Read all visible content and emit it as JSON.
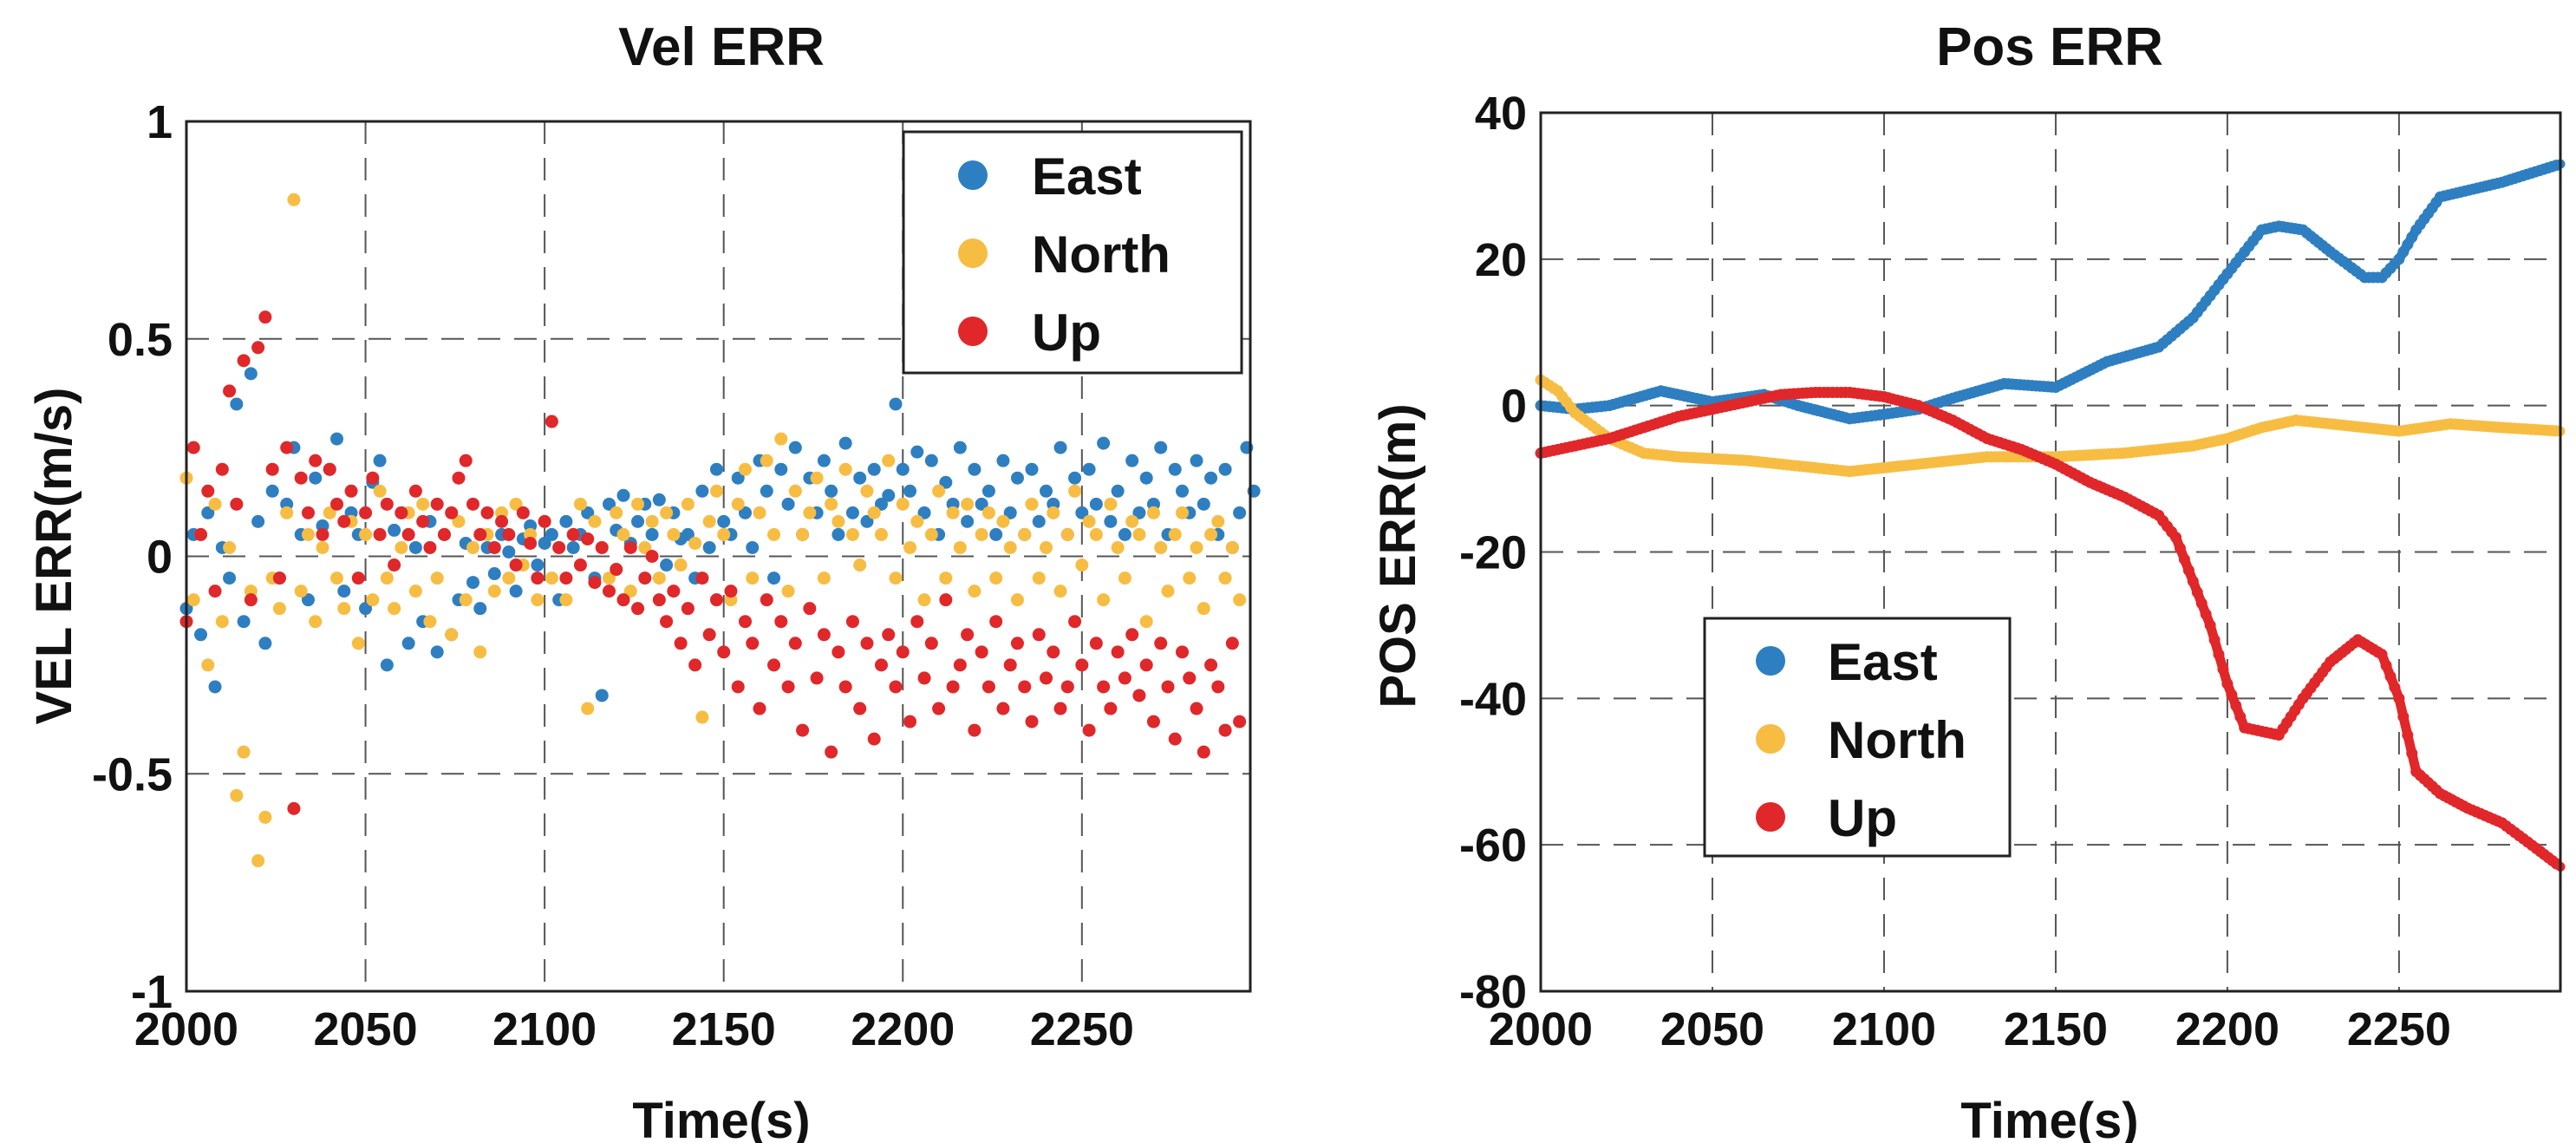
{
  "chart_data": [
    {
      "id": "vel",
      "type": "scatter",
      "title": "Vel ERR",
      "xlabel": "Time(s)",
      "ylabel": "VEL ERR(m/s)",
      "xlim": [
        2000,
        2297
      ],
      "ylim": [
        -1,
        1
      ],
      "xticks": [
        2000,
        2050,
        2100,
        2150,
        2200,
        2250
      ],
      "yticks": [
        -1,
        -0.5,
        0,
        0.5,
        1
      ],
      "xtick_labels": [
        "2000",
        "2050",
        "2100",
        "2150",
        "2200",
        "2250"
      ],
      "ytick_labels": [
        "-1",
        "-0.5",
        "0",
        "0.5",
        "1"
      ],
      "grid": true,
      "legend_position": "top-right",
      "x_start": 2000,
      "x_step": 2,
      "series": [
        {
          "name": "East",
          "color": "#2e7fc1",
          "values": [
            -0.12,
            0.05,
            -0.18,
            0.1,
            -0.3,
            0.02,
            -0.05,
            0.35,
            -0.15,
            0.42,
            0.08,
            -0.2,
            0.15,
            -0.05,
            0.12,
            0.25,
            0.05,
            -0.1,
            0.18,
            0.07,
            0.2,
            0.27,
            -0.08,
            0.1,
            0.05,
            -0.12,
            0.17,
            0.22,
            -0.25,
            0.06,
            0.1,
            -0.2,
            0.02,
            -0.15,
            0.08,
            -0.22,
            0.05,
            -0.18,
            -0.1,
            0.03,
            -0.06,
            -0.12,
            0.02,
            -0.04,
            0.05,
            0.01,
            -0.08,
            0.04,
            0.07,
            -0.02,
            0.03,
            0.05,
            -0.1,
            0.08,
            0.02,
            0.05,
            0.1,
            -0.05,
            -0.32,
            0.12,
            0.06,
            0.14,
            0.03,
            0.08,
            0.12,
            0.05,
            0.13,
            -0.02,
            0.1,
            0.04,
            0.05,
            -0.05,
            0.15,
            0.02,
            0.2,
            0.08,
            0.05,
            0.18,
            0.1,
            0.02,
            0.22,
            0.15,
            -0.05,
            0.2,
            0.12,
            0.25,
            0.05,
            0.18,
            0.1,
            0.22,
            0.15,
            0.05,
            0.26,
            0.1,
            0.18,
            0.08,
            0.2,
            0.12,
            0.14,
            0.35,
            0.2,
            0.15,
            0.24,
            0.1,
            0.22,
            0.05,
            0.17,
            0.12,
            0.25,
            0.08,
            0.2,
            0.12,
            0.15,
            0.05,
            0.22,
            0.1,
            0.18,
            0.05,
            0.2,
            0.08,
            0.15,
            0.12,
            0.25,
            0.05,
            0.18,
            0.1,
            0.2,
            0.12,
            0.26,
            0.08,
            0.15,
            0.05,
            0.22,
            0.1,
            0.18,
            0.12,
            0.25,
            0.05,
            0.2,
            0.15,
            0.1,
            0.22,
            0.12,
            0.18,
            0.05,
            0.2,
            0.02,
            0.1,
            0.25,
            0.15
          ]
        },
        {
          "name": "North",
          "color": "#f7bd42",
          "values": [
            0.18,
            -0.1,
            0.05,
            -0.25,
            0.12,
            -0.15,
            0.02,
            -0.55,
            -0.45,
            -0.08,
            -0.7,
            -0.6,
            -0.05,
            -0.12,
            0.1,
            0.82,
            -0.08,
            0.05,
            -0.15,
            0.02,
            0.1,
            -0.05,
            -0.12,
            0.08,
            -0.2,
            0.05,
            -0.1,
            0.15,
            -0.05,
            -0.12,
            0.02,
            0.1,
            -0.08,
            0.12,
            -0.15,
            -0.05,
            0.05,
            -0.18,
            0.08,
            -0.1,
            0.02,
            -0.22,
            0.05,
            -0.08,
            0.1,
            -0.05,
            0.12,
            -0.02,
            0.05,
            -0.1,
            0.08,
            -0.05,
            0.02,
            -0.1,
            0.05,
            0.12,
            -0.35,
            0.08,
            0.02,
            -0.05,
            0.1,
            0.05,
            -0.08,
            0.12,
            0.02,
            0.08,
            -0.05,
            0.1,
            0.05,
            -0.02,
            0.12,
            0.03,
            -0.37,
            0.08,
            0.15,
            0.05,
            -0.1,
            0.12,
            0.2,
            -0.05,
            0.1,
            0.22,
            0.05,
            0.27,
            -0.08,
            0.15,
            0.05,
            0.1,
            0.18,
            -0.05,
            0.12,
            0.08,
            0.2,
            0.05,
            -0.02,
            0.15,
            0.1,
            0.05,
            0.22,
            -0.05,
            0.12,
            0.02,
            0.08,
            -0.1,
            0.05,
            0.15,
            -0.05,
            0.1,
            0.02,
            0.12,
            -0.08,
            0.05,
            0.1,
            -0.05,
            0.08,
            0.02,
            -0.1,
            0.05,
            0.12,
            -0.05,
            0.02,
            0.1,
            -0.08,
            0.05,
            0.15,
            -0.02,
            0.08,
            0.05,
            -0.1,
            0.12,
            0.02,
            -0.05,
            0.08,
            0.05,
            -0.15,
            0.1,
            0.02,
            -0.08,
            0.05,
            0.1,
            -0.05,
            0.02,
            -0.12,
            0.05,
            0.08,
            -0.05,
            0.02,
            -0.1
          ]
        },
        {
          "name": "Up",
          "color": "#e0272a",
          "values": [
            -0.15,
            0.25,
            0.05,
            0.15,
            -0.08,
            0.2,
            0.38,
            0.12,
            0.45,
            -0.1,
            0.48,
            0.55,
            0.2,
            -0.05,
            0.25,
            -0.58,
            0.18,
            0.1,
            0.22,
            0.05,
            0.2,
            0.12,
            0.08,
            0.15,
            -0.05,
            0.1,
            0.18,
            0.05,
            0.12,
            -0.02,
            0.1,
            0.05,
            0.15,
            0.08,
            0.02,
            0.12,
            0.05,
            0.1,
            0.18,
            0.22,
            0.12,
            0.05,
            0.1,
            0.02,
            0.08,
            0.05,
            -0.02,
            0.1,
            0.03,
            -0.05,
            0.08,
            0.31,
            0.02,
            -0.05,
            0.05,
            -0.02,
            0.04,
            -0.06,
            0.02,
            -0.08,
            -0.03,
            -0.1,
            0.02,
            -0.12,
            -0.05,
            0,
            -0.1,
            -0.15,
            -0.08,
            -0.2,
            -0.12,
            -0.25,
            -0.05,
            -0.18,
            -0.1,
            -0.22,
            -0.08,
            -0.3,
            -0.15,
            -0.2,
            -0.35,
            -0.1,
            -0.25,
            -0.15,
            -0.3,
            -0.2,
            -0.4,
            -0.12,
            -0.28,
            -0.18,
            -0.45,
            -0.22,
            -0.3,
            -0.15,
            -0.35,
            -0.2,
            -0.42,
            -0.25,
            -0.18,
            -0.3,
            -0.22,
            -0.38,
            -0.15,
            -0.28,
            -0.2,
            -0.35,
            -0.1,
            -0.3,
            -0.25,
            -0.18,
            -0.4,
            -0.22,
            -0.3,
            -0.15,
            -0.35,
            -0.25,
            -0.2,
            -0.3,
            -0.38,
            -0.18,
            -0.28,
            -0.22,
            -0.35,
            -0.3,
            -0.15,
            -0.25,
            -0.4,
            -0.2,
            -0.3,
            -0.35,
            -0.22,
            -0.28,
            -0.18,
            -0.32,
            -0.25,
            -0.38,
            -0.2,
            -0.3,
            -0.42,
            -0.22,
            -0.28,
            -0.35,
            -0.45,
            -0.25,
            -0.3,
            -0.4,
            -0.2,
            -0.38
          ]
        }
      ]
    },
    {
      "id": "pos",
      "type": "line",
      "title": "Pos ERR",
      "xlabel": "Time(s)",
      "ylabel": "POS ERR(m)",
      "xlim": [
        2000,
        2297
      ],
      "ylim": [
        -80,
        40
      ],
      "xticks": [
        2000,
        2050,
        2100,
        2150,
        2200,
        2250
      ],
      "yticks": [
        -80,
        -60,
        -40,
        -20,
        0,
        20,
        40
      ],
      "xtick_labels": [
        "2000",
        "2050",
        "2100",
        "2150",
        "2200",
        "2250"
      ],
      "ytick_labels": [
        "-80",
        "-60",
        "-40",
        "-20",
        "0",
        "20",
        "40"
      ],
      "grid": true,
      "legend_position": "lower-left",
      "series": [
        {
          "name": "East",
          "color": "#2e7fc1",
          "x": [
            2000,
            2010,
            2020,
            2035,
            2050,
            2065,
            2075,
            2090,
            2100,
            2110,
            2120,
            2135,
            2150,
            2165,
            2180,
            2190,
            2200,
            2210,
            2215,
            2222,
            2230,
            2240,
            2245,
            2250,
            2255,
            2262,
            2280,
            2297
          ],
          "y": [
            0,
            -0.5,
            0,
            2,
            0.5,
            1.5,
            0,
            -1.8,
            -1.2,
            -0.5,
            1,
            3,
            2.5,
            6,
            8,
            12,
            18,
            24,
            24.5,
            24,
            21,
            17.5,
            17.5,
            20,
            24,
            28.5,
            30.5,
            33
          ]
        },
        {
          "name": "North",
          "color": "#f7bd42",
          "x": [
            2000,
            2005,
            2010,
            2020,
            2030,
            2040,
            2060,
            2080,
            2090,
            2110,
            2130,
            2150,
            2170,
            2190,
            2200,
            2210,
            2220,
            2230,
            2250,
            2265,
            2280,
            2297
          ],
          "y": [
            3.5,
            2,
            -1,
            -4.5,
            -6.5,
            -7,
            -7.5,
            -8.5,
            -9,
            -8,
            -7,
            -7,
            -6.5,
            -5.5,
            -4.5,
            -3,
            -2,
            -2.5,
            -3.5,
            -2.5,
            -3,
            -3.5
          ]
        },
        {
          "name": "Up",
          "color": "#e0272a",
          "x": [
            2000,
            2010,
            2020,
            2030,
            2040,
            2050,
            2060,
            2070,
            2080,
            2090,
            2100,
            2110,
            2120,
            2130,
            2140,
            2150,
            2160,
            2170,
            2180,
            2185,
            2190,
            2195,
            2200,
            2205,
            2210,
            2215,
            2222,
            2230,
            2238,
            2245,
            2250,
            2255,
            2262,
            2270,
            2280,
            2290,
            2297
          ],
          "y": [
            -6.5,
            -5.5,
            -4.5,
            -3,
            -1.5,
            -0.5,
            0.5,
            1.5,
            1.8,
            1.8,
            1.2,
            0,
            -2,
            -4.5,
            -6,
            -8,
            -10.5,
            -12.5,
            -15,
            -18,
            -24,
            -30,
            -38,
            -44,
            -44.5,
            -45,
            -40,
            -35,
            -32,
            -34,
            -40,
            -50,
            -53,
            -55,
            -57,
            -60.5,
            -63
          ]
        }
      ]
    }
  ]
}
